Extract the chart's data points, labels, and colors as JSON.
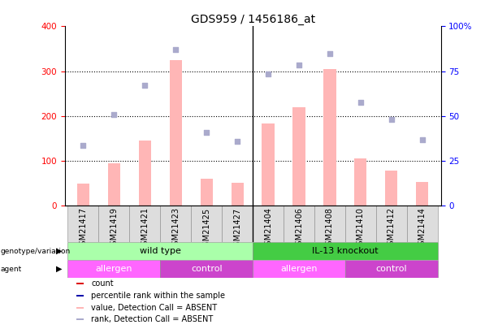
{
  "title": "GDS959 / 1456186_at",
  "samples": [
    "GSM21417",
    "GSM21419",
    "GSM21421",
    "GSM21423",
    "GSM21425",
    "GSM21427",
    "GSM21404",
    "GSM21406",
    "GSM21408",
    "GSM21410",
    "GSM21412",
    "GSM21414"
  ],
  "bar_values": [
    50,
    95,
    145,
    325,
    60,
    52,
    183,
    220,
    305,
    105,
    78,
    53
  ],
  "scatter_values": [
    135,
    203,
    268,
    348,
    163,
    143,
    293,
    313,
    340,
    230,
    193,
    148
  ],
  "ylim_left": [
    0,
    400
  ],
  "ylim_right": [
    0,
    100
  ],
  "yticks_left": [
    0,
    100,
    200,
    300,
    400
  ],
  "ytick_labels_left": [
    "0",
    "100",
    "200",
    "300",
    "400"
  ],
  "yticks_right_vals": [
    0,
    100,
    200,
    300,
    400
  ],
  "ytick_labels_right": [
    "0",
    "25",
    "50",
    "75",
    "100%"
  ],
  "bar_color": "#FFB6B6",
  "scatter_color": "#AAAACC",
  "absent_bar_color": "#FFB6B6",
  "absent_scatter_color": "#AAAACC",
  "background_color": "#ffffff",
  "sample_box_color": "#DDDDDD",
  "genotype_groups": [
    {
      "label": "wild type",
      "start": 0,
      "end": 6,
      "color": "#AAFFAA"
    },
    {
      "label": "IL-13 knockout",
      "start": 6,
      "end": 12,
      "color": "#44CC44"
    }
  ],
  "agent_groups": [
    {
      "label": "allergen",
      "start": 0,
      "end": 3,
      "color": "#FF66FF"
    },
    {
      "label": "control",
      "start": 3,
      "end": 6,
      "color": "#CC44CC"
    },
    {
      "label": "allergen",
      "start": 6,
      "end": 9,
      "color": "#FF66FF"
    },
    {
      "label": "control",
      "start": 9,
      "end": 12,
      "color": "#CC44CC"
    }
  ],
  "legend_items": [
    {
      "label": "count",
      "color": "#DD0000"
    },
    {
      "label": "percentile rank within the sample",
      "color": "#0000AA"
    },
    {
      "label": "value, Detection Call = ABSENT",
      "color": "#FFB6B6"
    },
    {
      "label": "rank, Detection Call = ABSENT",
      "color": "#AAAACC"
    }
  ],
  "label_fontsize": 8,
  "tick_fontsize": 7.5,
  "title_fontsize": 10
}
